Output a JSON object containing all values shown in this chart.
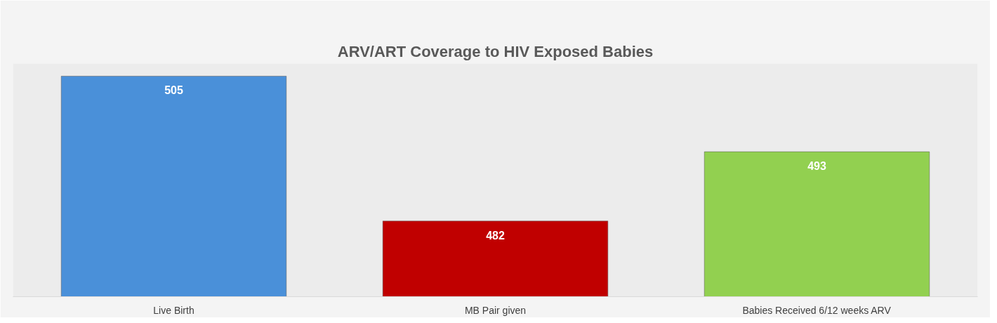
{
  "chart_data": {
    "type": "bar",
    "title": "ARV/ART Coverage to HIV Exposed Babies",
    "categories": [
      "Live Birth",
      "MB Pair given",
      "Babies Received 6/12 weeks ARV"
    ],
    "values": [
      505,
      482,
      493
    ],
    "colors": [
      "#4a90d9",
      "#c00000",
      "#92d050"
    ],
    "ylim": [
      470,
      507
    ],
    "data_labels": true,
    "grid": false,
    "tick_labels": "x"
  }
}
